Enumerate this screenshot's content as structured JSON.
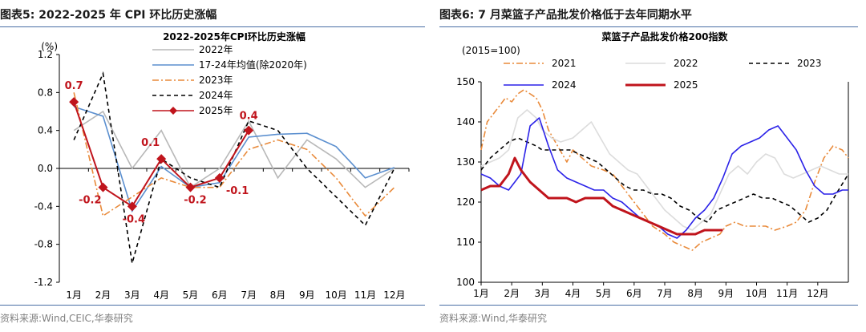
{
  "left": {
    "fig_title": "图表5:  2022-2025 年 CPI 环比历史涨幅",
    "source": "资料来源:Wind,CEIC,华泰研究"
  },
  "right": {
    "fig_title": "图表6:  7 月菜篮子产品批发价格低于去年同期水平",
    "source": "资料来源:Wind,华泰研究"
  },
  "chart_data": [
    {
      "type": "line",
      "title": "2022-2025年CPI环比历史涨幅",
      "ylabel": "(%)",
      "xlabel": "",
      "categories": [
        "1月",
        "2月",
        "3月",
        "4月",
        "5月",
        "6月",
        "7月",
        "8月",
        "9月",
        "10月",
        "11月",
        "12月"
      ],
      "ylim": [
        -1.2,
        1.2
      ],
      "yticks": [
        1.2,
        0.8,
        0.4,
        0.0,
        -0.4,
        -0.8,
        -1.2
      ],
      "ytick_labels": [
        "1.2",
        "0.8",
        "0.4",
        "0.0",
        "-0.4",
        "-0.8",
        "-1.2"
      ],
      "grid": false,
      "legend_position": "top-center",
      "series": [
        {
          "name": "2022年",
          "color": "#b8b8b8",
          "dash": "solid",
          "values": [
            0.4,
            0.6,
            0.0,
            0.4,
            -0.2,
            0.0,
            0.5,
            -0.1,
            0.3,
            0.1,
            -0.2,
            0.0
          ]
        },
        {
          "name": "17-24年均值(除2020年)",
          "color": "#5b8fcf",
          "dash": "solid",
          "values": [
            0.65,
            0.55,
            -0.45,
            0.02,
            -0.2,
            -0.15,
            0.33,
            0.36,
            0.37,
            0.23,
            -0.1,
            0.01
          ]
        },
        {
          "name": "2023年",
          "color": "#e98a3a",
          "dash": "dashdot",
          "values": [
            0.8,
            -0.5,
            -0.3,
            -0.1,
            -0.2,
            -0.2,
            0.2,
            0.3,
            0.2,
            -0.1,
            -0.5,
            -0.2
          ]
        },
        {
          "name": "2024年",
          "color": "#000000",
          "dash": "dash",
          "values": [
            0.3,
            1.0,
            -1.0,
            0.1,
            -0.1,
            -0.2,
            0.5,
            0.4,
            0.0,
            -0.3,
            -0.6,
            0.0
          ]
        },
        {
          "name": "2025年",
          "color": "#c0141c",
          "dash": "solid",
          "marker": "diamond",
          "values": [
            0.7,
            -0.2,
            -0.4,
            0.1,
            -0.2,
            -0.1,
            0.4,
            null,
            null,
            null,
            null,
            null
          ]
        }
      ],
      "data_labels": [
        {
          "month_index": 0,
          "text": "0.7"
        },
        {
          "month_index": 1,
          "text": "-0.2"
        },
        {
          "month_index": 2,
          "text": "-0.4"
        },
        {
          "month_index": 3,
          "text": "0.1"
        },
        {
          "month_index": 4,
          "text": "-0.2"
        },
        {
          "month_index": 5,
          "text": "-0.1"
        },
        {
          "month_index": 6,
          "text": "0.4"
        }
      ]
    },
    {
      "type": "line",
      "title": "菜篮子产品批发价格200指数",
      "ylabel": "(2015=100)",
      "xlabel": "",
      "categories": [
        "1月",
        "2月",
        "3月",
        "4月",
        "5月",
        "6月",
        "7月",
        "8月",
        "9月",
        "10月",
        "11月",
        "12月"
      ],
      "ylim": [
        100,
        150
      ],
      "yticks": [
        150,
        140,
        130,
        120,
        110,
        100
      ],
      "grid": false,
      "legend_position": "top",
      "series": [
        {
          "name": "2021",
          "color": "#e98a3a",
          "dash": "dashdot",
          "x": [
            0,
            0.2,
            0.4,
            0.6,
            0.8,
            1.0,
            1.2,
            1.4,
            1.6,
            1.8,
            2.0,
            2.2,
            2.5,
            2.8,
            3.0,
            3.3,
            3.6,
            4.0,
            4.3,
            4.6,
            5.0,
            5.3,
            5.6,
            6.0,
            6.3,
            6.6,
            6.9,
            7.2,
            7.5,
            7.8,
            8.0,
            8.3,
            8.6,
            9.0,
            9.3,
            9.6,
            10.0,
            10.3,
            10.6,
            10.9,
            11.2,
            11.5,
            11.8,
            12.0
          ],
          "y": [
            133,
            140,
            142,
            144,
            146,
            145,
            147,
            148,
            147,
            146,
            143,
            138,
            134,
            130,
            133,
            131,
            129,
            128,
            127,
            124,
            120,
            117,
            114,
            112,
            110,
            109,
            108,
            110,
            111,
            112,
            114,
            115,
            114,
            114,
            114,
            113,
            114,
            115,
            118,
            125,
            131,
            134,
            133,
            131
          ]
        },
        {
          "name": "2022",
          "color": "#dcdcdc",
          "dash": "solid",
          "x": [
            0,
            0.3,
            0.6,
            0.9,
            1.2,
            1.5,
            1.8,
            2.0,
            2.3,
            2.6,
            3.0,
            3.3,
            3.6,
            3.9,
            4.2,
            4.5,
            4.8,
            5.1,
            5.4,
            5.7,
            6.0,
            6.3,
            6.6,
            6.9,
            7.2,
            7.5,
            7.8,
            8.1,
            8.4,
            8.7,
            9.0,
            9.3,
            9.6,
            9.9,
            10.2,
            10.5,
            10.8,
            11.1,
            11.4,
            11.7,
            12.0
          ],
          "y": [
            129,
            130,
            131,
            133,
            141,
            143,
            141,
            138,
            136,
            135,
            136,
            138,
            140,
            136,
            132,
            130,
            128,
            127,
            124,
            121,
            118,
            116,
            114,
            113,
            115,
            117,
            122,
            127,
            129,
            127,
            130,
            132,
            131,
            127,
            126,
            127,
            128,
            129,
            128,
            127,
            127
          ]
        },
        {
          "name": "2023",
          "color": "#000000",
          "dash": "dash",
          "x": [
            0,
            0.3,
            0.6,
            0.9,
            1.2,
            1.5,
            1.8,
            2.0,
            2.3,
            2.6,
            2.9,
            3.2,
            3.5,
            3.8,
            4.1,
            4.4,
            4.7,
            5.0,
            5.3,
            5.6,
            5.9,
            6.2,
            6.5,
            6.8,
            7.1,
            7.4,
            7.7,
            8.0,
            8.3,
            8.6,
            8.9,
            9.2,
            9.5,
            9.8,
            10.1,
            10.4,
            10.7,
            11.0,
            11.3,
            11.6,
            12.0
          ],
          "y": [
            128,
            131,
            133,
            135,
            136,
            135,
            134,
            133,
            133,
            133,
            133,
            132,
            131,
            130,
            128,
            126,
            124,
            123,
            123,
            122,
            122,
            121,
            119,
            118,
            116,
            115,
            118,
            119,
            120,
            121,
            122,
            121,
            121,
            120,
            119,
            117,
            115,
            116,
            118,
            122,
            127
          ]
        },
        {
          "name": "2024",
          "color": "#2b22e8",
          "dash": "solid",
          "x": [
            0,
            0.3,
            0.6,
            0.9,
            1.1,
            1.3,
            1.6,
            1.9,
            2.2,
            2.5,
            2.8,
            3.1,
            3.4,
            3.7,
            4.0,
            4.3,
            4.6,
            4.9,
            5.2,
            5.5,
            5.8,
            6.1,
            6.4,
            6.7,
            7.0,
            7.3,
            7.6,
            7.9,
            8.2,
            8.5,
            8.8,
            9.1,
            9.4,
            9.7,
            10.0,
            10.3,
            10.6,
            10.9,
            11.2,
            11.5,
            11.8,
            12.0
          ],
          "y": [
            127,
            126,
            124,
            123,
            125,
            127,
            139,
            141,
            134,
            128,
            126,
            125,
            124,
            123,
            123,
            121,
            120,
            118,
            116,
            115,
            114,
            112,
            111,
            113,
            116,
            118,
            121,
            126,
            132,
            134,
            135,
            136,
            138,
            139,
            136,
            133,
            128,
            124,
            122,
            122,
            123,
            123
          ]
        },
        {
          "name": "2025",
          "color": "#c0141c",
          "dash": "solid",
          "width": 3,
          "x": [
            0,
            0.3,
            0.6,
            0.9,
            1.1,
            1.3,
            1.6,
            1.9,
            2.2,
            2.5,
            2.8,
            3.1,
            3.4,
            3.7,
            4.0,
            4.3,
            4.6,
            4.9,
            5.2,
            5.5,
            5.8,
            6.1,
            6.4,
            6.7,
            7.0,
            7.3,
            7.6,
            7.9
          ],
          "y": [
            123,
            124,
            124,
            127,
            131,
            128,
            125,
            123,
            121,
            121,
            121,
            120,
            121,
            121,
            121,
            119,
            118,
            117,
            116,
            115,
            114,
            113,
            112,
            112,
            112,
            113,
            113,
            113
          ]
        }
      ]
    }
  ]
}
